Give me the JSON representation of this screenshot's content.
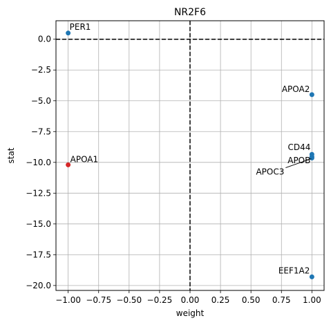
{
  "chart_data": {
    "type": "scatter",
    "title": "NR2F6",
    "xlabel": "weight",
    "ylabel": "stat",
    "xlim": [
      -1.1,
      1.1
    ],
    "ylim": [
      -20.4,
      1.5
    ],
    "grid": true,
    "xticks": [
      -1.0,
      -0.75,
      -0.5,
      -0.25,
      0.0,
      0.25,
      0.5,
      0.75,
      1.0
    ],
    "xtick_labels": [
      "−1.00",
      "−0.75",
      "−0.50",
      "−0.25",
      "0.00",
      "0.25",
      "0.50",
      "0.75",
      "1.00"
    ],
    "yticks": [
      0.0,
      -2.5,
      -5.0,
      -7.5,
      -10.0,
      -12.5,
      -15.0,
      -17.5,
      -20.0
    ],
    "ytick_labels": [
      "0.0",
      "−2.5",
      "−5.0",
      "−7.5",
      "−10.0",
      "−12.5",
      "−15.0",
      "−17.5",
      "−20.0"
    ],
    "reference_lines": {
      "x": 0,
      "y": 0,
      "style": "dashed",
      "color": "#000000"
    },
    "colors": {
      "positive": "#1f77b4",
      "negative": "#d62728"
    },
    "points": [
      {
        "label": "PER1",
        "x": -1.0,
        "y": 0.5,
        "color": "#1f77b4"
      },
      {
        "label": "APOA2",
        "x": 1.0,
        "y": -4.5,
        "color": "#1f77b4"
      },
      {
        "label": "CD44",
        "x": 1.0,
        "y": -9.35,
        "color": "#1f77b4"
      },
      {
        "label": "APOB",
        "x": 1.0,
        "y": -9.55,
        "color": "#1f77b4"
      },
      {
        "label": "APOC3",
        "x": 1.0,
        "y": -9.65,
        "color": "#1f77b4"
      },
      {
        "label": "APOA1",
        "x": -1.0,
        "y": -10.2,
        "color": "#d62728"
      },
      {
        "label": "EEF1A2",
        "x": 1.0,
        "y": -19.3,
        "color": "#1f77b4"
      }
    ]
  }
}
